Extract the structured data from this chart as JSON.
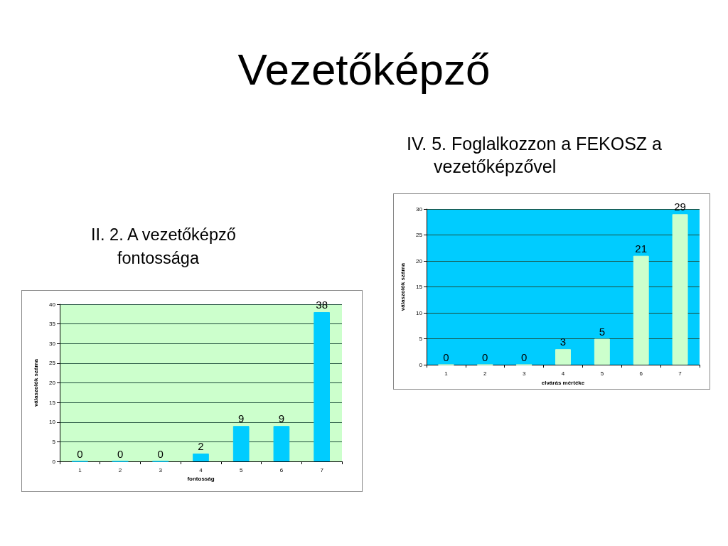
{
  "chart_data": [
    {
      "type": "bar",
      "title": "II. 2. A vezetőképző fontossága",
      "annotations": [
        "Vezetőképző"
      ],
      "xlabel": "fontosság",
      "ylabel": "válaszolók száma",
      "categories": [
        "1",
        "2",
        "3",
        "4",
        "5",
        "6",
        "7"
      ],
      "values": [
        0,
        0,
        0,
        2,
        9,
        9,
        38
      ],
      "color": "#00ccff",
      "ylim": [
        0,
        40
      ],
      "yticks": [
        0,
        5,
        10,
        15,
        20,
        25,
        30,
        35,
        40
      ],
      "grid": "y",
      "data_labels": true
    },
    {
      "type": "bar",
      "title": "IV. 5. Foglalkozzon a FEKOSZ a vezetőképzővel",
      "xlabel": "elvárás mértéke",
      "ylabel": "válaszolók száma",
      "categories": [
        "1",
        "2",
        "3",
        "4",
        "5",
        "6",
        "7"
      ],
      "values": [
        0,
        0,
        0,
        3,
        5,
        21,
        29
      ],
      "color": "#ccffcc",
      "ylim": [
        0,
        30
      ],
      "yticks": [
        0,
        5,
        10,
        15,
        20,
        25,
        30
      ],
      "grid": "y",
      "data_labels": true
    }
  ]
}
